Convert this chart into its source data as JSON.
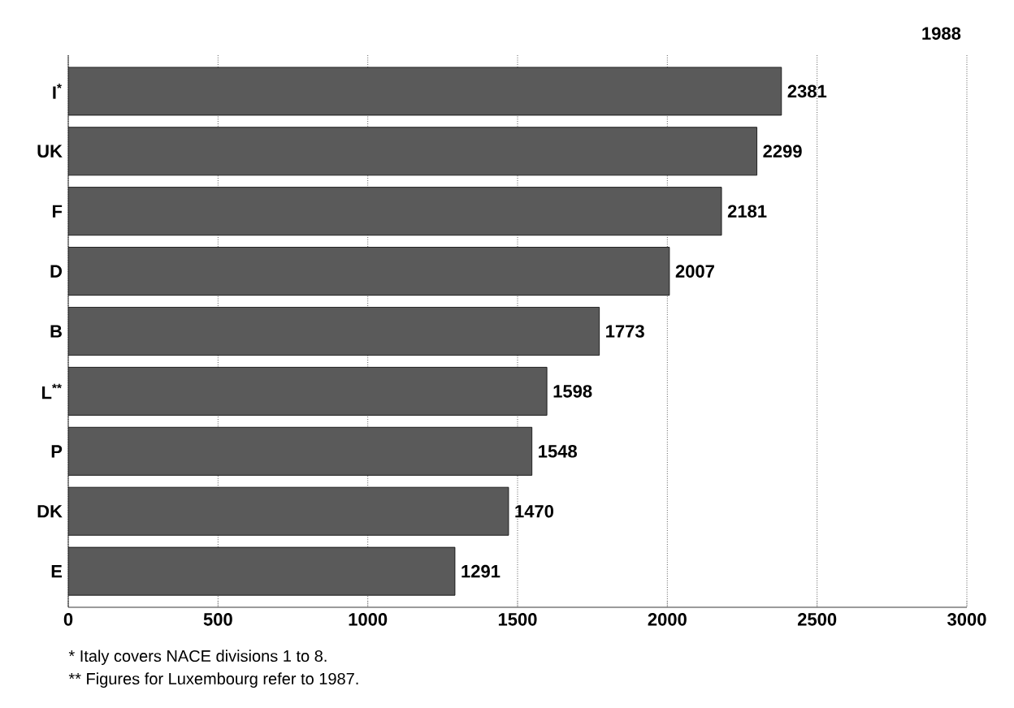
{
  "chart_data": {
    "type": "bar",
    "orientation": "horizontal",
    "title": "1988",
    "categories": [
      "I$^{*}$",
      "UK",
      "F",
      "D",
      "B",
      "L$^{**}$",
      "P",
      "DK",
      "E"
    ],
    "values": [
      2381,
      2299,
      2181,
      2007,
      1773,
      1598,
      1548,
      1470,
      1291
    ],
    "value_labels": [
      "2381",
      "2299",
      "2181",
      "2007",
      "1773",
      "1598",
      "1548",
      "1470",
      "1291"
    ],
    "color": "#5a5a5a",
    "xlim": [
      0,
      3000
    ],
    "xticks": [
      0,
      500,
      1000,
      1500,
      2000,
      2500,
      3000
    ],
    "grid": "x",
    "annotations": [
      "* Italy covers NACE divisions 1 to 8.",
      "** Figures for Luxembourg refer to 1987."
    ]
  }
}
